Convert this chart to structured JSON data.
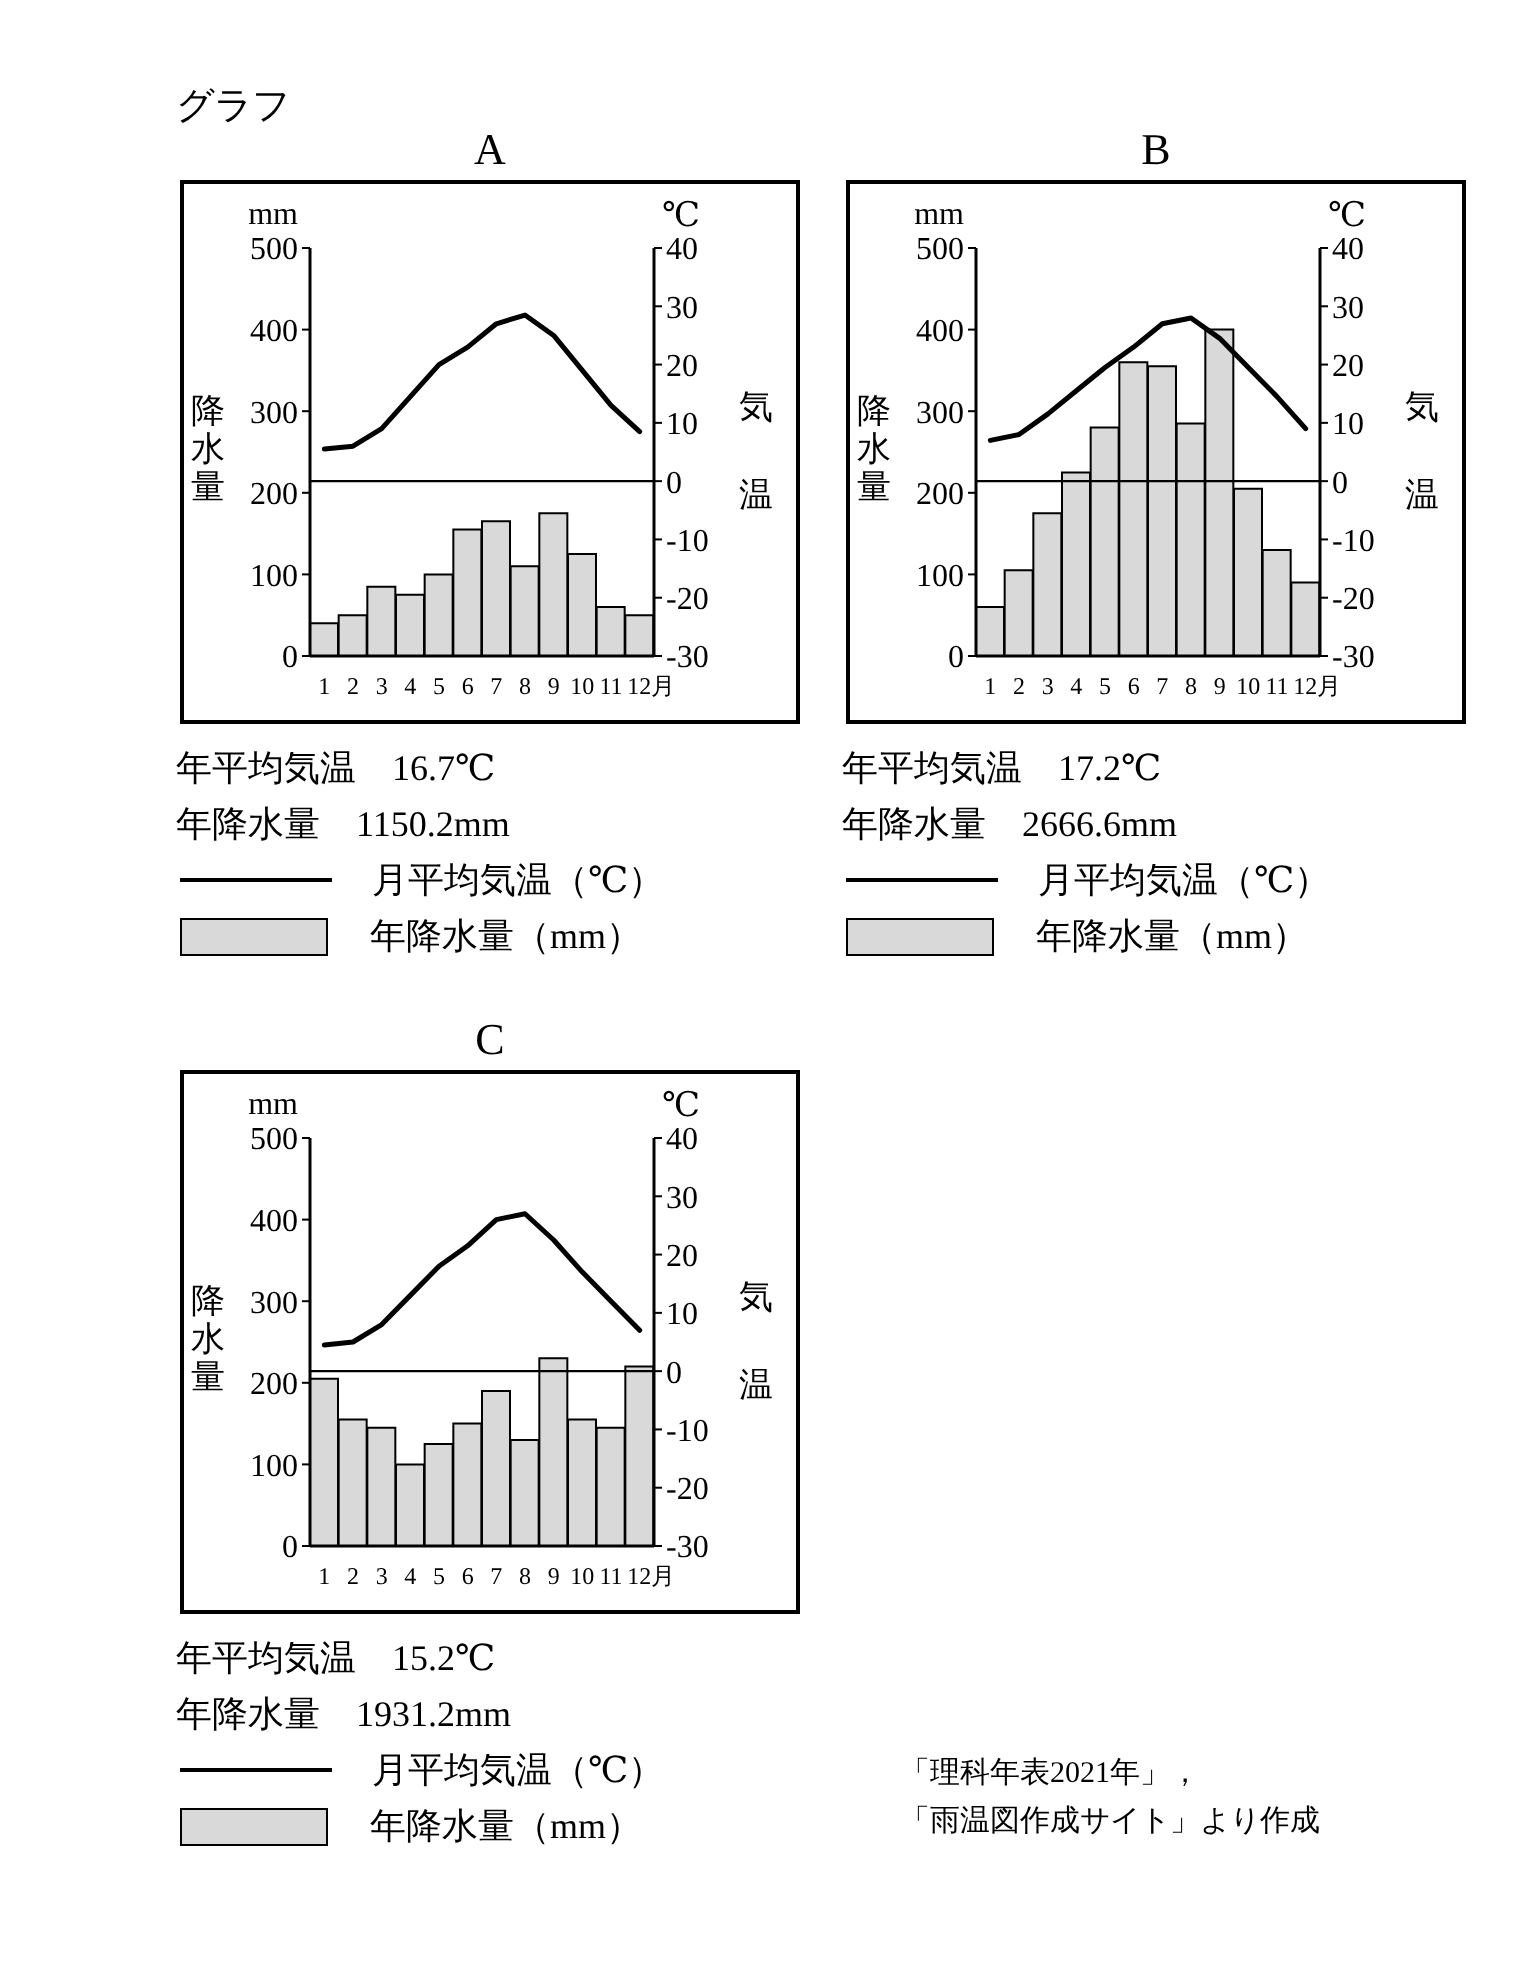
{
  "chart_data": [
    {
      "type": "bar",
      "title": "A",
      "categories": [
        "1",
        "2",
        "3",
        "4",
        "5",
        "6",
        "7",
        "8",
        "9",
        "10",
        "11",
        "12月"
      ],
      "series": [
        {
          "name": "月平均気温（℃）",
          "type": "line",
          "axis": "y2",
          "color": "#000000",
          "values": [
            5.5,
            6,
            9,
            14.5,
            20,
            23,
            27,
            28.5,
            25,
            19,
            13,
            8.5
          ]
        },
        {
          "name": "年降水量（mm）",
          "color": "#d9d9d9",
          "values": [
            40,
            50,
            85,
            75,
            100,
            155,
            165,
            110,
            175,
            125,
            60,
            50
          ]
        }
      ],
      "ylabel": "降水量",
      "y2label": "気温",
      "ylim": [
        0,
        500
      ],
      "yticks": [
        0,
        100,
        200,
        300,
        400,
        500
      ],
      "y2lim": [
        -30,
        40
      ],
      "y2ticks": [
        -30,
        -20,
        -10,
        0,
        10,
        20,
        30,
        40
      ],
      "ref_lines": [
        {
          "axis": "y2",
          "value": 0,
          "color": "#000000"
        }
      ],
      "legend": "bottom",
      "line_style": "solid",
      "annotations": [
        "mm",
        "℃",
        "年平均気温　16.7℃",
        "年降水量　1150.2mm",
        "グラフ"
      ]
    },
    {
      "type": "bar",
      "title": "B",
      "categories": [
        "1",
        "2",
        "3",
        "4",
        "5",
        "6",
        "7",
        "8",
        "9",
        "10",
        "11",
        "12月"
      ],
      "series": [
        {
          "name": "月平均気温（℃）",
          "type": "line",
          "axis": "y2",
          "color": "#000000",
          "values": [
            7,
            8,
            11.5,
            15.5,
            19.5,
            23,
            27,
            28,
            24.5,
            19.5,
            14.5,
            9
          ]
        },
        {
          "name": "年降水量（mm）",
          "color": "#d9d9d9",
          "values": [
            60,
            105,
            175,
            225,
            280,
            360,
            355,
            285,
            400,
            205,
            130,
            90
          ]
        }
      ],
      "ylabel": "降水量",
      "y2label": "気温",
      "ylim": [
        0,
        500
      ],
      "yticks": [
        0,
        100,
        200,
        300,
        400,
        500
      ],
      "y2lim": [
        -30,
        40
      ],
      "y2ticks": [
        -30,
        -20,
        -10,
        0,
        10,
        20,
        30,
        40
      ],
      "ref_lines": [
        {
          "axis": "y2",
          "value": 0,
          "color": "#000000"
        }
      ],
      "legend": "bottom",
      "line_style": "solid",
      "annotations": [
        "mm",
        "℃",
        "年平均気温　17.2℃",
        "年降水量　2666.6mm"
      ]
    },
    {
      "type": "bar",
      "title": "C",
      "categories": [
        "1",
        "2",
        "3",
        "4",
        "5",
        "6",
        "7",
        "8",
        "9",
        "10",
        "11",
        "12月"
      ],
      "series": [
        {
          "name": "月平均気温（℃）",
          "type": "line",
          "axis": "y2",
          "color": "#000000",
          "values": [
            4.5,
            5,
            8,
            13,
            18,
            21.5,
            26,
            27,
            22.5,
            17,
            12,
            7
          ]
        },
        {
          "name": "年降水量（mm）",
          "color": "#d9d9d9",
          "values": [
            205,
            155,
            145,
            100,
            125,
            150,
            190,
            130,
            230,
            155,
            145,
            220
          ]
        }
      ],
      "ylabel": "降水量",
      "y2label": "気温",
      "ylim": [
        0,
        500
      ],
      "yticks": [
        0,
        100,
        200,
        300,
        400,
        500
      ],
      "y2lim": [
        -30,
        40
      ],
      "y2ticks": [
        -30,
        -20,
        -10,
        0,
        10,
        20,
        30,
        40
      ],
      "ref_lines": [
        {
          "axis": "y2",
          "value": 0,
          "color": "#000000"
        }
      ],
      "legend": "bottom",
      "line_style": "solid",
      "annotations": [
        "mm",
        "℃",
        "年平均気温　15.2℃",
        "年降水量　1931.2mm",
        "「理科年表2021年」，",
        "「雨温図作成サイト」より作成"
      ]
    }
  ]
}
